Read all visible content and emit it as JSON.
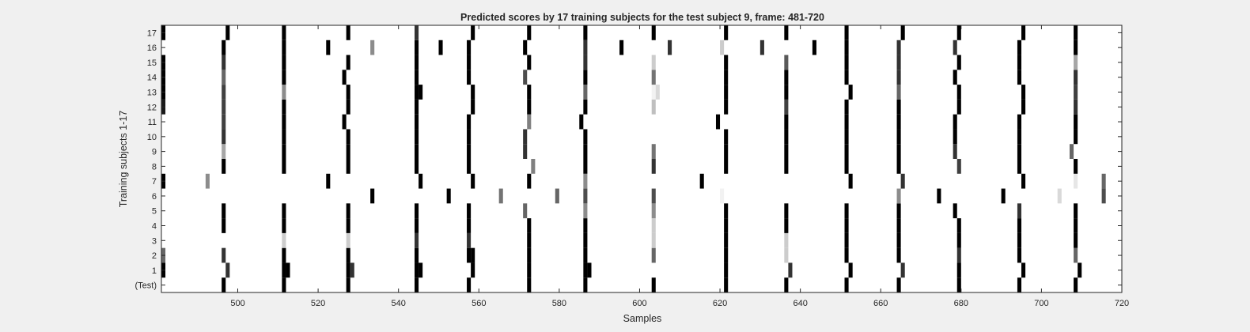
{
  "chart_data": {
    "type": "heatmap",
    "title": "Predicted scores by 17 training subjects for the test subject 9, frame: 481-720",
    "xlabel": "Samples",
    "ylabel": "Training subjects 1-17",
    "xlim": [
      481,
      720
    ],
    "xticks": [
      500,
      520,
      540,
      560,
      580,
      600,
      620,
      640,
      660,
      680,
      700,
      720
    ],
    "row_labels": [
      "(Test)",
      "1",
      "2",
      "3",
      "4",
      "5",
      "6",
      "7",
      "8",
      "9",
      "10",
      "11",
      "12",
      "13",
      "14",
      "15",
      "16",
      "17"
    ],
    "colormap": "gray (1 = black, 0 = white)",
    "events": [
      [
        496.5,
        0,
        1
      ],
      [
        496.5,
        4,
        1
      ],
      [
        496.5,
        5,
        1
      ],
      [
        496.5,
        8,
        1
      ],
      [
        496.5,
        9,
        0.35
      ],
      [
        496.5,
        10,
        0.8
      ],
      [
        496.5,
        11,
        0.75
      ],
      [
        496.5,
        12,
        0.75
      ],
      [
        496.5,
        13,
        0.75
      ],
      [
        496.5,
        14,
        0.6
      ],
      [
        496.5,
        15,
        0.8
      ],
      [
        496.5,
        16,
        1
      ],
      [
        497.5,
        1,
        0.8
      ],
      [
        497.5,
        17,
        1
      ],
      [
        496.5,
        2,
        0.8
      ],
      [
        492.5,
        7,
        0.45
      ],
      [
        481.5,
        1,
        1
      ],
      [
        481.5,
        2,
        0.6
      ],
      [
        481.5,
        7,
        1
      ],
      [
        481.5,
        12,
        0.9
      ],
      [
        481.5,
        13,
        1
      ],
      [
        481.5,
        14,
        1
      ],
      [
        481.5,
        15,
        1
      ],
      [
        481.5,
        17,
        1
      ],
      [
        511.5,
        0,
        1
      ],
      [
        511.5,
        1,
        1
      ],
      [
        511.5,
        2,
        1
      ],
      [
        511.5,
        3,
        0.2
      ],
      [
        511.5,
        4,
        1
      ],
      [
        511.5,
        5,
        1
      ],
      [
        511.5,
        8,
        1
      ],
      [
        511.5,
        9,
        1
      ],
      [
        511.5,
        10,
        1
      ],
      [
        511.5,
        11,
        1
      ],
      [
        511.5,
        12,
        1
      ],
      [
        511.5,
        13,
        0.45
      ],
      [
        511.5,
        14,
        1
      ],
      [
        511.5,
        15,
        1
      ],
      [
        511.5,
        16,
        1
      ],
      [
        511.5,
        17,
        1
      ],
      [
        512.5,
        1,
        1
      ],
      [
        522.5,
        7,
        1
      ],
      [
        522.5,
        16,
        1
      ],
      [
        527.5,
        0,
        1
      ],
      [
        527.5,
        1,
        1
      ],
      [
        527.5,
        2,
        1
      ],
      [
        527.5,
        3,
        0.2
      ],
      [
        527.5,
        4,
        1
      ],
      [
        527.5,
        5,
        1
      ],
      [
        527.5,
        8,
        1
      ],
      [
        527.5,
        9,
        1
      ],
      [
        527.5,
        10,
        1
      ],
      [
        527.5,
        12,
        1
      ],
      [
        527.5,
        13,
        1
      ],
      [
        527.5,
        15,
        1
      ],
      [
        527.5,
        17,
        1
      ],
      [
        526.5,
        11,
        1
      ],
      [
        526.5,
        14,
        1
      ],
      [
        528.5,
        1,
        0.8
      ],
      [
        533.5,
        6,
        1
      ],
      [
        533.5,
        16,
        0.45
      ],
      [
        544.5,
        0,
        1
      ],
      [
        544.5,
        1,
        1
      ],
      [
        544.5,
        2,
        1
      ],
      [
        544.5,
        3,
        0.8
      ],
      [
        544.5,
        4,
        1
      ],
      [
        544.5,
        5,
        1
      ],
      [
        544.5,
        8,
        1
      ],
      [
        544.5,
        9,
        1
      ],
      [
        544.5,
        10,
        1
      ],
      [
        544.5,
        11,
        1
      ],
      [
        544.5,
        12,
        1
      ],
      [
        544.5,
        13,
        1
      ],
      [
        544.5,
        14,
        1
      ],
      [
        544.5,
        15,
        1
      ],
      [
        544.5,
        16,
        1
      ],
      [
        544.5,
        17,
        0.8
      ],
      [
        545.5,
        1,
        1
      ],
      [
        545.5,
        7,
        1
      ],
      [
        545.5,
        13,
        1
      ],
      [
        550.5,
        16,
        1
      ],
      [
        552.5,
        6,
        1
      ],
      [
        557.5,
        0,
        1
      ],
      [
        557.5,
        2,
        1
      ],
      [
        557.5,
        3,
        0.8
      ],
      [
        557.5,
        4,
        1
      ],
      [
        557.5,
        5,
        1
      ],
      [
        557.5,
        8,
        1
      ],
      [
        557.5,
        9,
        1
      ],
      [
        557.5,
        10,
        1
      ],
      [
        557.5,
        11,
        1
      ],
      [
        557.5,
        14,
        1
      ],
      [
        557.5,
        15,
        1
      ],
      [
        557.5,
        16,
        1
      ],
      [
        558.5,
        1,
        1
      ],
      [
        558.5,
        2,
        1
      ],
      [
        558.5,
        7,
        1
      ],
      [
        558.5,
        12,
        1
      ],
      [
        558.5,
        13,
        1
      ],
      [
        558.5,
        17,
        1
      ],
      [
        565.5,
        6,
        0.55
      ],
      [
        572.5,
        0,
        1
      ],
      [
        572.5,
        1,
        1
      ],
      [
        572.5,
        2,
        1
      ],
      [
        572.5,
        3,
        1
      ],
      [
        572.5,
        4,
        1
      ],
      [
        572.5,
        7,
        1
      ],
      [
        572.5,
        11,
        0.5
      ],
      [
        572.5,
        12,
        1
      ],
      [
        572.5,
        13,
        1
      ],
      [
        572.5,
        15,
        1
      ],
      [
        572.5,
        17,
        1
      ],
      [
        571.5,
        5,
        0.6
      ],
      [
        571.5,
        9,
        0.8
      ],
      [
        571.5,
        10,
        0.8
      ],
      [
        571.5,
        14,
        0.7
      ],
      [
        571.5,
        16,
        1
      ],
      [
        573.5,
        8,
        0.5
      ],
      [
        579.5,
        6,
        0.6
      ],
      [
        586.5,
        0,
        1
      ],
      [
        586.5,
        1,
        1
      ],
      [
        586.5,
        2,
        1
      ],
      [
        586.5,
        3,
        1
      ],
      [
        586.5,
        4,
        1
      ],
      [
        586.5,
        5,
        0.45
      ],
      [
        586.5,
        6,
        0.7
      ],
      [
        586.5,
        7,
        0.45
      ],
      [
        586.5,
        8,
        1
      ],
      [
        586.5,
        9,
        1
      ],
      [
        586.5,
        10,
        1
      ],
      [
        586.5,
        12,
        1
      ],
      [
        586.5,
        13,
        0.6
      ],
      [
        586.5,
        14,
        1
      ],
      [
        586.5,
        15,
        0.8
      ],
      [
        586.5,
        16,
        0.8
      ],
      [
        586.5,
        17,
        1
      ],
      [
        585.5,
        11,
        1
      ],
      [
        587.5,
        1,
        1
      ],
      [
        595.5,
        16,
        1
      ],
      [
        603.5,
        0,
        1
      ],
      [
        603.5,
        2,
        0.6
      ],
      [
        603.5,
        3,
        0.2
      ],
      [
        603.5,
        4,
        0.2
      ],
      [
        603.5,
        5,
        0.45
      ],
      [
        603.5,
        6,
        0.7
      ],
      [
        603.5,
        8,
        0.8
      ],
      [
        603.5,
        9,
        0.55
      ],
      [
        603.5,
        12,
        0.25
      ],
      [
        603.5,
        13,
        0.05
      ],
      [
        603.5,
        14,
        0.55
      ],
      [
        603.5,
        15,
        0.2
      ],
      [
        603.5,
        17,
        1
      ],
      [
        604.5,
        13,
        0.15
      ],
      [
        607.5,
        16,
        0.8
      ],
      [
        615.5,
        7,
        1
      ],
      [
        619.5,
        11,
        1
      ],
      [
        620.5,
        6,
        0.05
      ],
      [
        620.5,
        16,
        0.2
      ],
      [
        621.5,
        0,
        1
      ],
      [
        621.5,
        1,
        1
      ],
      [
        621.5,
        2,
        1
      ],
      [
        621.5,
        3,
        1
      ],
      [
        621.5,
        4,
        1
      ],
      [
        621.5,
        5,
        1
      ],
      [
        621.5,
        8,
        1
      ],
      [
        621.5,
        9,
        1
      ],
      [
        621.5,
        10,
        1
      ],
      [
        621.5,
        12,
        1
      ],
      [
        621.5,
        13,
        1
      ],
      [
        621.5,
        14,
        1
      ],
      [
        621.5,
        15,
        1
      ],
      [
        621.5,
        17,
        1
      ],
      [
        630.5,
        16,
        0.8
      ],
      [
        636.5,
        0,
        1
      ],
      [
        636.5,
        2,
        0.2
      ],
      [
        636.5,
        3,
        0.2
      ],
      [
        636.5,
        4,
        1
      ],
      [
        636.5,
        5,
        1
      ],
      [
        636.5,
        8,
        1
      ],
      [
        636.5,
        9,
        1
      ],
      [
        636.5,
        10,
        1
      ],
      [
        636.5,
        11,
        1
      ],
      [
        636.5,
        12,
        0.75
      ],
      [
        636.5,
        13,
        1
      ],
      [
        636.5,
        14,
        1
      ],
      [
        636.5,
        15,
        0.65
      ],
      [
        636.5,
        17,
        1
      ],
      [
        637.5,
        1,
        0.8
      ],
      [
        643.5,
        16,
        1
      ],
      [
        651.5,
        0,
        1
      ],
      [
        651.5,
        2,
        1
      ],
      [
        651.5,
        3,
        1
      ],
      [
        651.5,
        4,
        1
      ],
      [
        651.5,
        5,
        1
      ],
      [
        651.5,
        8,
        1
      ],
      [
        651.5,
        9,
        1
      ],
      [
        651.5,
        10,
        1
      ],
      [
        651.5,
        11,
        1
      ],
      [
        651.5,
        12,
        1
      ],
      [
        651.5,
        14,
        1
      ],
      [
        651.5,
        15,
        1
      ],
      [
        651.5,
        16,
        1
      ],
      [
        651.5,
        17,
        1
      ],
      [
        652.5,
        1,
        1
      ],
      [
        652.5,
        7,
        1
      ],
      [
        652.5,
        13,
        1
      ],
      [
        664.5,
        0,
        1
      ],
      [
        664.5,
        2,
        1
      ],
      [
        664.5,
        3,
        1
      ],
      [
        664.5,
        4,
        1
      ],
      [
        664.5,
        5,
        1
      ],
      [
        664.5,
        6,
        0.45
      ],
      [
        664.5,
        8,
        1
      ],
      [
        664.5,
        9,
        1
      ],
      [
        664.5,
        10,
        1
      ],
      [
        664.5,
        11,
        1
      ],
      [
        664.5,
        12,
        1
      ],
      [
        664.5,
        13,
        0.6
      ],
      [
        664.5,
        14,
        0.8
      ],
      [
        664.5,
        15,
        0.8
      ],
      [
        664.5,
        16,
        0.8
      ],
      [
        665.5,
        1,
        0.8
      ],
      [
        665.5,
        7,
        0.8
      ],
      [
        665.5,
        17,
        1
      ],
      [
        674.5,
        6,
        1
      ],
      [
        678.5,
        5,
        1
      ],
      [
        678.5,
        9,
        0.8
      ],
      [
        678.5,
        10,
        1
      ],
      [
        678.5,
        11,
        1
      ],
      [
        678.5,
        14,
        1
      ],
      [
        678.5,
        16,
        0.8
      ],
      [
        679.5,
        0,
        1
      ],
      [
        679.5,
        1,
        1
      ],
      [
        679.5,
        2,
        0.8
      ],
      [
        679.5,
        3,
        1
      ],
      [
        679.5,
        4,
        1
      ],
      [
        679.5,
        8,
        0.75
      ],
      [
        679.5,
        12,
        1
      ],
      [
        679.5,
        13,
        1
      ],
      [
        679.5,
        15,
        1
      ],
      [
        679.5,
        17,
        1
      ],
      [
        690.5,
        6,
        1
      ],
      [
        694.5,
        0,
        1
      ],
      [
        694.5,
        2,
        1
      ],
      [
        694.5,
        3,
        1
      ],
      [
        694.5,
        4,
        1
      ],
      [
        694.5,
        5,
        0.8
      ],
      [
        694.5,
        8,
        1
      ],
      [
        694.5,
        9,
        1
      ],
      [
        694.5,
        10,
        1
      ],
      [
        694.5,
        11,
        1
      ],
      [
        694.5,
        14,
        1
      ],
      [
        694.5,
        15,
        1
      ],
      [
        694.5,
        16,
        1
      ],
      [
        695.5,
        1,
        1
      ],
      [
        695.5,
        7,
        1
      ],
      [
        695.5,
        12,
        1
      ],
      [
        695.5,
        13,
        1
      ],
      [
        695.5,
        17,
        1
      ],
      [
        704.5,
        6,
        0.15
      ],
      [
        707.5,
        9,
        0.6
      ],
      [
        708.5,
        0,
        1
      ],
      [
        708.5,
        2,
        0.6
      ],
      [
        708.5,
        3,
        1
      ],
      [
        708.5,
        4,
        1
      ],
      [
        708.5,
        5,
        1
      ],
      [
        708.5,
        7,
        0.1
      ],
      [
        708.5,
        8,
        1
      ],
      [
        708.5,
        10,
        1
      ],
      [
        708.5,
        11,
        1
      ],
      [
        708.5,
        12,
        0.8
      ],
      [
        708.5,
        13,
        0.75
      ],
      [
        708.5,
        14,
        0.8
      ],
      [
        708.5,
        15,
        0.35
      ],
      [
        708.5,
        16,
        1
      ],
      [
        708.5,
        17,
        1
      ],
      [
        709.5,
        1,
        1
      ],
      [
        715.5,
        6,
        0.7
      ],
      [
        715.5,
        7,
        0.6
      ]
    ]
  }
}
